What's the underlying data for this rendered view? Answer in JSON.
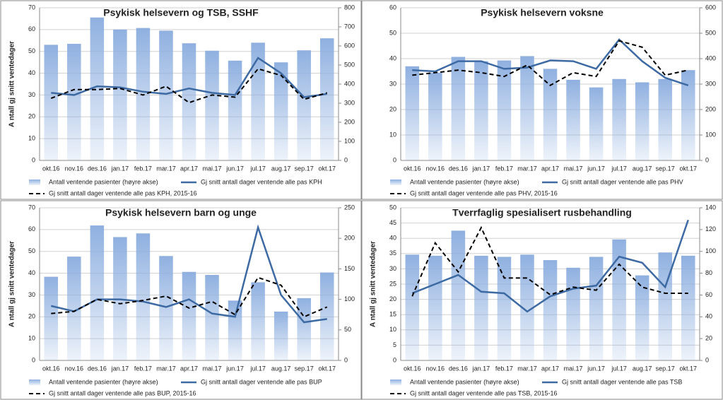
{
  "chart_data": [
    {
      "type": "bar",
      "title": "Psykisk helsevern og TSB, SSHF",
      "y_label": "A ntall gj snitt ventedager",
      "categories": [
        "okt.16",
        "nov.16",
        "des.16",
        "jan.17",
        "feb.17",
        "mar.17",
        "apr.17",
        "mai.17",
        "jun.17",
        "jul.17",
        "aug.17",
        "sep.17",
        "okt.17"
      ],
      "ylim": [
        0,
        70
      ],
      "yticks": [
        0,
        10,
        20,
        30,
        40,
        50,
        60,
        70
      ],
      "y2lim": [
        0,
        800
      ],
      "y2ticks": [
        0,
        100,
        200,
        300,
        400,
        500,
        600,
        700,
        800
      ],
      "series": [
        {
          "name": "Antall ventende pasienter (høyre akse)",
          "type": "bar",
          "axis": "y2",
          "color": "#8fb0e0",
          "values": [
            606,
            611,
            749,
            686,
            694,
            680,
            614,
            575,
            523,
            617,
            514,
            577,
            640
          ]
        },
        {
          "name": "Gj snitt antall dager ventende alle pas KPH",
          "type": "line",
          "color": "#3d6aa3",
          "values": [
            31,
            30,
            34,
            33.5,
            31.5,
            30.5,
            33,
            31,
            30,
            47,
            40,
            29,
            30.5
          ]
        },
        {
          "name": "Gj snitt antall dager ventende alle pas KPH, 2015-16",
          "type": "dashed",
          "color": "#000000",
          "values": [
            28.5,
            32.5,
            32.5,
            33,
            30,
            34,
            26.5,
            30,
            29,
            42,
            39,
            28,
            31
          ]
        }
      ]
    },
    {
      "type": "bar",
      "title": "Psykisk helsevern voksne",
      "categories": [
        "okt.16",
        "nov.16",
        "des.16",
        "jan.17",
        "feb.17",
        "mar.17",
        "apr.17",
        "mai.17",
        "jun.17",
        "jul.17",
        "aug.17",
        "sep.17",
        "okt.17"
      ],
      "ylim": [
        0,
        60
      ],
      "yticks": [
        0,
        10,
        20,
        30,
        40,
        50,
        60
      ],
      "y2lim": [
        0,
        600
      ],
      "y2ticks": [
        0,
        100,
        200,
        300,
        400,
        500,
        600
      ],
      "series": [
        {
          "name": "Antall ventende pasienter (høyre akse)",
          "type": "bar",
          "axis": "y2",
          "color": "#8fb0e0",
          "values": [
            370,
            345,
            407,
            390,
            393,
            410,
            360,
            317,
            287,
            320,
            307,
            320,
            355
          ]
        },
        {
          "name": "Gj snitt antall dager ventende alle pas PHV",
          "type": "line",
          "color": "#3d6aa3",
          "values": [
            35.5,
            35,
            39,
            39,
            36,
            36.5,
            39.3,
            39,
            36,
            47.5,
            39,
            32.5,
            29.5
          ]
        },
        {
          "name": "Gj snitt antall dager ventende alle pas PHV, 2015-16",
          "type": "dashed",
          "color": "#000000",
          "values": [
            33.5,
            34.5,
            35.5,
            34.5,
            33,
            37.5,
            29.5,
            34.5,
            33,
            47,
            44.5,
            33.5,
            35.5
          ]
        }
      ]
    },
    {
      "type": "bar",
      "title": "Psykisk helsevern barn og unge",
      "y_label": "A ntall gj snitt ventedager",
      "categories": [
        "okt.16",
        "nov.16",
        "des.16",
        "jan.17",
        "feb.17",
        "mar.17",
        "apr.17",
        "mai.17",
        "jun.17",
        "jul.17",
        "aug.17",
        "sep.17",
        "okt.17"
      ],
      "ylim": [
        0,
        70
      ],
      "yticks": [
        0,
        10,
        20,
        30,
        40,
        50,
        60,
        70
      ],
      "y2lim": [
        0,
        250
      ],
      "y2ticks": [
        0,
        50,
        100,
        150,
        200,
        250
      ],
      "series": [
        {
          "name": "Antall ventende pasienter (høyre akse)",
          "type": "bar",
          "axis": "y2",
          "color": "#8fb0e0",
          "values": [
            137,
            170,
            221,
            202,
            208,
            171,
            145,
            140,
            98,
            128,
            80,
            102,
            144
          ]
        },
        {
          "name": "Gj snitt antall dager ventende alle pas BUP",
          "type": "line",
          "color": "#3d6aa3",
          "values": [
            25,
            22.5,
            28,
            28,
            27,
            24.5,
            28,
            21.5,
            20,
            61,
            30,
            17.5,
            19
          ]
        },
        {
          "name": "Gj snitt antall dager ventende alle pas BUP, 2015-16",
          "type": "dashed",
          "color": "#000000",
          "values": [
            21.5,
            22.5,
            28,
            26,
            27.5,
            29.5,
            24,
            27,
            21,
            38,
            34.5,
            20,
            24.5
          ]
        }
      ]
    },
    {
      "type": "bar",
      "title": "Tverrfaglig spesialisert rusbehandling",
      "y_label": "A ntall gj snitt ventedager",
      "categories": [
        "okt.16",
        "nov.16",
        "des.16",
        "jan.17",
        "feb.17",
        "mar.17",
        "apr.17",
        "mai.17",
        "jun.17",
        "jul.17",
        "aug.17",
        "sep.17",
        "okt.17"
      ],
      "ylim": [
        0,
        50
      ],
      "yticks": [
        0,
        5,
        10,
        15,
        20,
        25,
        30,
        35,
        40,
        45,
        50
      ],
      "y2lim": [
        0,
        140
      ],
      "y2ticks": [
        0,
        20,
        40,
        60,
        80,
        100,
        120,
        140
      ],
      "series": [
        {
          "name": "Antall ventende pasienter (høyre akse)",
          "type": "bar",
          "axis": "y2",
          "color": "#8fb0e0",
          "values": [
            97,
            96,
            119,
            96,
            95,
            97,
            92,
            85,
            95,
            111,
            78,
            99,
            96
          ]
        },
        {
          "name": "Gj snitt antall dager ventende alle pas TSB",
          "type": "line",
          "color": "#3d6aa3",
          "values": [
            22,
            25,
            28,
            22.5,
            22,
            16,
            21,
            23.5,
            24.5,
            34,
            32,
            24,
            46
          ]
        },
        {
          "name": "Gj snitt antall dager ventende alle pas TSB, 2015-16",
          "type": "dashed",
          "color": "#000000",
          "values": [
            21,
            38.5,
            29,
            43.5,
            27,
            27,
            21.5,
            24,
            23,
            31.5,
            24,
            22,
            22
          ]
        }
      ]
    }
  ]
}
